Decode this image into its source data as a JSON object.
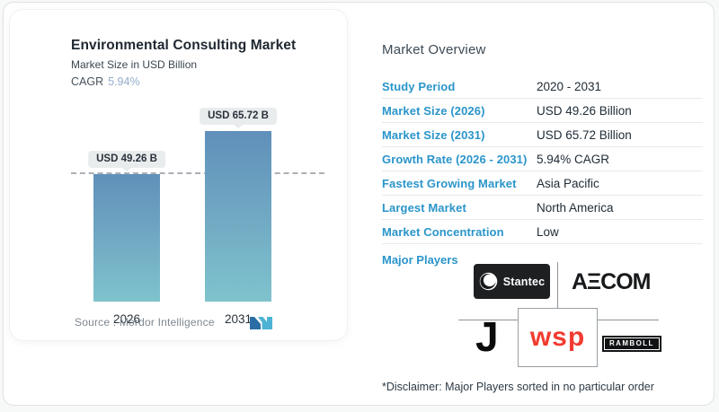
{
  "chart": {
    "title": "Environmental Consulting Market",
    "subtitle": "Market Size in USD Billion",
    "cagr_label": "CAGR",
    "cagr_value": "5.94%",
    "source_label": "Source :",
    "source_value": "Mordor Intelligence"
  },
  "chart_data": {
    "type": "bar",
    "title": "Environmental Consulting Market",
    "ylabel": "Market Size in USD Billion",
    "categories": [
      "2026",
      "2031"
    ],
    "values": [
      49.26,
      65.72
    ],
    "bar_labels": [
      "USD 49.26 B",
      "USD 65.72 B"
    ],
    "unit": "USD Billion",
    "cagr_percent": 5.94,
    "ylim": [
      0,
      65.72
    ],
    "grid": false,
    "legend": "none",
    "reference_line": {
      "style": "dashed",
      "at_value": 49.26
    },
    "bar_gradient_top": "#6090ba",
    "bar_gradient_bottom": "#7fc3cd"
  },
  "overview": {
    "title": "Market Overview",
    "rows": [
      {
        "label": "Study Period",
        "value": "2020 - 2031"
      },
      {
        "label": "Market Size (2026)",
        "value": "USD 49.26 Billion"
      },
      {
        "label": "Market Size (2031)",
        "value": "USD 65.72 Billion"
      },
      {
        "label": "Growth Rate (2026 - 2031)",
        "value": "5.94% CAGR"
      },
      {
        "label": "Fastest Growing Market",
        "value": "Asia Pacific"
      },
      {
        "label": "Largest Market",
        "value": "North America"
      },
      {
        "label": "Market Concentration",
        "value": "Low"
      }
    ],
    "major_players_label": "Major Players",
    "major_players": [
      "Stantec",
      "AECOM",
      "Jacobs",
      "wsp",
      "RAMBOLL"
    ],
    "players_display": {
      "stantec": "Stantec",
      "aecom": "AΞCOM",
      "jacobs_initial": "J",
      "wsp": "wsp",
      "ramboll": "RAMBOLL"
    },
    "disclaimer": "*Disclaimer: Major Players sorted in no particular order"
  },
  "colors": {
    "accent_blue": "#2a95ca",
    "cagr_value_blue": "#94accb",
    "bar_top": "#6090ba",
    "bar_bottom": "#7fc3cd",
    "badge_bg": "#e9eced",
    "wsp_red": "#f23b30",
    "logo_black": "#1e1f21"
  }
}
